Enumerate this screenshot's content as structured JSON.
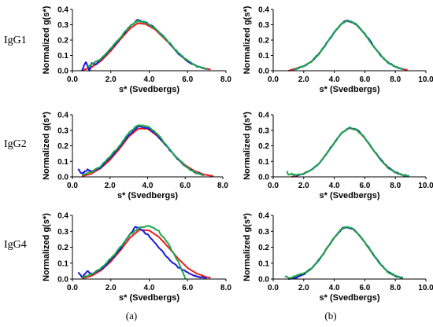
{
  "row_labels": [
    "IgG1",
    "IgG2",
    "IgG4"
  ],
  "column_labels": [
    "(a)",
    "(b)"
  ],
  "colors": {
    "red": "#ee1c1c",
    "blue": "#1a1ad6",
    "green": "#1aa84a",
    "axis": "#000000"
  },
  "chart_data": [
    {
      "type": "line",
      "row": "IgG1",
      "column": "(a)",
      "xlabel": "s* (Svedbergs)",
      "ylabel": "Normalized g(s*)",
      "xlim": [
        0.0,
        8.0
      ],
      "ylim": [
        0.0,
        0.4
      ],
      "x_ticks": [
        "0.0",
        "2.0",
        "4.0",
        "6.0",
        "8.0"
      ],
      "y_ticks": [
        "0.0",
        "0.1",
        "0.2",
        "0.3",
        "0.4"
      ],
      "series": [
        {
          "color": "red",
          "x": [
            0.5,
            1,
            1.5,
            2,
            2.5,
            3,
            3.4,
            3.8,
            4.3,
            5,
            5.5,
            6,
            6.5,
            7,
            7.2
          ],
          "y": [
            0.003,
            0.023,
            0.065,
            0.13,
            0.205,
            0.275,
            0.31,
            0.305,
            0.27,
            0.185,
            0.115,
            0.06,
            0.03,
            0.012,
            0.008
          ]
        },
        {
          "color": "blue",
          "x": [
            0.5,
            0.7,
            0.9,
            1,
            1.2,
            1.5,
            2,
            2.5,
            3,
            3.4,
            3.8,
            4.3,
            5,
            5.5,
            6,
            6.5,
            7
          ],
          "y": [
            0.0,
            0.06,
            0.0,
            0.05,
            0.04,
            0.075,
            0.14,
            0.215,
            0.29,
            0.33,
            0.315,
            0.28,
            0.19,
            0.115,
            0.06,
            0.028,
            0.01
          ]
        },
        {
          "color": "green",
          "x": [
            0.8,
            1,
            1.5,
            2,
            2.5,
            3,
            3.4,
            3.8,
            4.3,
            5,
            5.5,
            6,
            6.5,
            7
          ],
          "y": [
            0.03,
            0.04,
            0.08,
            0.145,
            0.22,
            0.29,
            0.325,
            0.315,
            0.275,
            0.19,
            0.12,
            0.065,
            0.032,
            0.012
          ]
        }
      ]
    },
    {
      "type": "line",
      "row": "IgG1",
      "column": "(b)",
      "xlabel": "s* (Svedbergs)",
      "ylabel": "Normalized g(s*)",
      "xlim": [
        0.0,
        10.0
      ],
      "ylim": [
        0.0,
        0.4
      ],
      "x_ticks": [
        "0.0",
        "2.0",
        "4.0",
        "6.0",
        "8.0",
        "10.0"
      ],
      "y_ticks": [
        "0.0",
        "0.1",
        "0.2",
        "0.3",
        "0.4"
      ],
      "series": [
        {
          "color": "red",
          "x": [
            1,
            2,
            2.5,
            3,
            3.5,
            4,
            4.5,
            4.8,
            5.2,
            5.5,
            6,
            6.5,
            7,
            7.5,
            8,
            8.5,
            8.8
          ],
          "y": [
            0.0,
            0.03,
            0.06,
            0.11,
            0.18,
            0.25,
            0.31,
            0.325,
            0.315,
            0.295,
            0.24,
            0.17,
            0.105,
            0.055,
            0.025,
            0.01,
            0.005
          ]
        },
        {
          "color": "blue",
          "x": [
            1.3,
            2,
            2.5,
            3,
            3.5,
            4,
            4.5,
            4.8,
            5.2,
            5.5,
            6,
            6.5,
            7,
            7.5,
            8,
            8.5
          ],
          "y": [
            0.004,
            0.03,
            0.06,
            0.11,
            0.18,
            0.25,
            0.31,
            0.328,
            0.318,
            0.297,
            0.242,
            0.172,
            0.106,
            0.055,
            0.025,
            0.01
          ]
        },
        {
          "color": "green",
          "x": [
            1.3,
            2,
            2.5,
            3,
            3.5,
            4,
            4.5,
            4.8,
            5.2,
            5.5,
            6,
            6.5,
            7,
            7.5,
            8,
            8.5
          ],
          "y": [
            0.005,
            0.03,
            0.06,
            0.11,
            0.18,
            0.25,
            0.31,
            0.326,
            0.316,
            0.296,
            0.24,
            0.17,
            0.105,
            0.055,
            0.025,
            0.01
          ]
        }
      ]
    },
    {
      "type": "line",
      "row": "IgG2",
      "column": "(a)",
      "xlabel": "s* (Svedbergs)",
      "ylabel": "Normalized g(s*)",
      "xlim": [
        0.0,
        8.0
      ],
      "ylim": [
        0.0,
        0.4
      ],
      "x_ticks": [
        "0.0",
        "2.0",
        "4.0",
        "6.0",
        "8.0"
      ],
      "y_ticks": [
        "0.0",
        "0.1",
        "0.2",
        "0.3",
        "0.4"
      ],
      "series": [
        {
          "color": "red",
          "x": [
            0.5,
            1,
            1.5,
            2,
            2.5,
            3,
            3.5,
            4,
            4.5,
            5,
            5.5,
            6,
            6.5,
            7,
            7.5
          ],
          "y": [
            0.003,
            0.02,
            0.055,
            0.11,
            0.18,
            0.26,
            0.31,
            0.31,
            0.265,
            0.2,
            0.13,
            0.075,
            0.038,
            0.015,
            0.005
          ]
        },
        {
          "color": "blue",
          "x": [
            0.3,
            0.5,
            0.8,
            1,
            1.5,
            2,
            2.5,
            3,
            3.5,
            4,
            4.5,
            5,
            5.5,
            6,
            6.5,
            7
          ],
          "y": [
            0.05,
            0.02,
            0.045,
            0.035,
            0.06,
            0.12,
            0.19,
            0.27,
            0.325,
            0.315,
            0.27,
            0.2,
            0.125,
            0.068,
            0.03,
            0.01
          ]
        },
        {
          "color": "green",
          "x": [
            0.5,
            1,
            1.5,
            2,
            2.5,
            3,
            3.5,
            4,
            4.5,
            5,
            5.5,
            6,
            6.5,
            7
          ],
          "y": [
            0.01,
            0.03,
            0.07,
            0.13,
            0.2,
            0.285,
            0.335,
            0.325,
            0.28,
            0.205,
            0.13,
            0.07,
            0.03,
            0.01
          ]
        }
      ]
    },
    {
      "type": "line",
      "row": "IgG2",
      "column": "(b)",
      "xlabel": "s* (Svedbergs)",
      "ylabel": "Normalized g(s*)",
      "xlim": [
        0.0,
        10.0
      ],
      "ylim": [
        0.0,
        0.4
      ],
      "x_ticks": [
        "0.0",
        "2.0",
        "4.0",
        "6.0",
        "8.0",
        "10.0"
      ],
      "y_ticks": [
        "0.0",
        "0.1",
        "0.2",
        "0.3",
        "0.4"
      ],
      "series": [
        {
          "color": "red",
          "x": [
            1.2,
            2,
            2.5,
            3,
            3.5,
            4,
            4.5,
            5,
            5.5,
            6,
            6.5,
            7,
            7.5,
            8,
            8.5,
            8.9
          ],
          "y": [
            0.0,
            0.02,
            0.045,
            0.085,
            0.15,
            0.22,
            0.285,
            0.315,
            0.3,
            0.25,
            0.18,
            0.115,
            0.06,
            0.028,
            0.01,
            0.004
          ]
        },
        {
          "color": "blue",
          "x": [
            1.5,
            2,
            2.5,
            3,
            3.5,
            4,
            4.5,
            5,
            5.5,
            6,
            6.5,
            7,
            7.5,
            8,
            8.5,
            8.9
          ],
          "y": [
            0.005,
            0.02,
            0.045,
            0.085,
            0.15,
            0.22,
            0.285,
            0.318,
            0.303,
            0.252,
            0.182,
            0.116,
            0.062,
            0.03,
            0.012,
            0.006
          ]
        },
        {
          "color": "green",
          "x": [
            0.9,
            1,
            1.2,
            1.5,
            2,
            2.5,
            3,
            3.5,
            4,
            4.5,
            5,
            5.5,
            6,
            6.5,
            7,
            7.5,
            8,
            8.5,
            8.9
          ],
          "y": [
            0.04,
            0.01,
            0.02,
            0.01,
            0.02,
            0.045,
            0.085,
            0.15,
            0.22,
            0.285,
            0.316,
            0.301,
            0.25,
            0.18,
            0.115,
            0.06,
            0.028,
            0.01,
            0.004
          ]
        }
      ]
    },
    {
      "type": "line",
      "row": "IgG4",
      "column": "(a)",
      "xlabel": "s* (Svedbergs)",
      "ylabel": "Normalized g(s*)",
      "xlim": [
        0.0,
        8.0
      ],
      "ylim": [
        0.0,
        0.4
      ],
      "x_ticks": [
        "0.0",
        "2.0",
        "4.0",
        "6.0",
        "8.0"
      ],
      "y_ticks": [
        "0.0",
        "0.1",
        "0.2",
        "0.3",
        "0.4"
      ],
      "series": [
        {
          "color": "red",
          "x": [
            0.5,
            1,
            1.5,
            2,
            2.5,
            3,
            3.5,
            4,
            4.5,
            5,
            5.5,
            6,
            6.5,
            7,
            7.2
          ],
          "y": [
            0.003,
            0.02,
            0.055,
            0.11,
            0.18,
            0.26,
            0.31,
            0.305,
            0.265,
            0.2,
            0.13,
            0.07,
            0.033,
            0.012,
            0.008
          ]
        },
        {
          "color": "blue",
          "x": [
            0.3,
            0.5,
            0.8,
            1,
            1.5,
            2,
            2.5,
            3,
            3.3,
            3.7,
            4,
            4.5,
            5,
            5.5,
            6,
            6.5,
            7
          ],
          "y": [
            0.045,
            0.01,
            0.05,
            0.03,
            0.06,
            0.12,
            0.19,
            0.28,
            0.33,
            0.3,
            0.27,
            0.2,
            0.13,
            0.075,
            0.04,
            0.015,
            0.005
          ]
        },
        {
          "color": "green",
          "x": [
            0.5,
            1,
            1.5,
            2,
            2.5,
            3,
            3.5,
            4,
            4.5,
            5,
            5.5,
            5.9
          ],
          "y": [
            0.01,
            0.03,
            0.07,
            0.13,
            0.2,
            0.28,
            0.325,
            0.335,
            0.3,
            0.22,
            0.11,
            0.0
          ]
        }
      ]
    },
    {
      "type": "line",
      "row": "IgG4",
      "column": "(b)",
      "xlabel": "s* (Svedbergs)",
      "ylabel": "Normalized g(s*)",
      "xlim": [
        0.0,
        10.0
      ],
      "ylim": [
        0.0,
        0.4
      ],
      "x_ticks": [
        "0.0",
        "2.0",
        "4.0",
        "6.0",
        "8.0",
        "10.0"
      ],
      "y_ticks": [
        "0.0",
        "0.1",
        "0.2",
        "0.3",
        "0.4"
      ],
      "series": [
        {
          "color": "red",
          "x": [
            1,
            1.5,
            2,
            2.5,
            3,
            3.5,
            4,
            4.5,
            4.8,
            5.2,
            5.5,
            6,
            6.5,
            7,
            7.5,
            8,
            8.5
          ],
          "y": [
            0.0,
            0.01,
            0.03,
            0.065,
            0.12,
            0.19,
            0.26,
            0.315,
            0.325,
            0.315,
            0.29,
            0.23,
            0.16,
            0.095,
            0.045,
            0.018,
            0.005
          ]
        },
        {
          "color": "blue",
          "x": [
            1,
            1.5,
            2,
            2.5,
            3,
            3.5,
            4,
            4.5,
            4.8,
            5.2,
            5.5,
            6,
            6.5,
            7,
            7.5,
            8,
            8.5
          ],
          "y": [
            0.0,
            0.01,
            0.03,
            0.065,
            0.12,
            0.19,
            0.26,
            0.317,
            0.327,
            0.317,
            0.292,
            0.232,
            0.162,
            0.096,
            0.046,
            0.019,
            0.006
          ]
        },
        {
          "color": "green",
          "x": [
            0.8,
            1,
            1.5,
            2,
            2.5,
            3,
            3.5,
            4,
            4.5,
            4.8,
            5.2,
            5.5,
            6,
            6.5,
            7,
            7.5,
            8,
            8.5
          ],
          "y": [
            0.02,
            0.005,
            0.02,
            0.035,
            0.065,
            0.12,
            0.19,
            0.26,
            0.316,
            0.326,
            0.316,
            0.291,
            0.231,
            0.161,
            0.095,
            0.045,
            0.018,
            0.005
          ]
        }
      ]
    }
  ]
}
